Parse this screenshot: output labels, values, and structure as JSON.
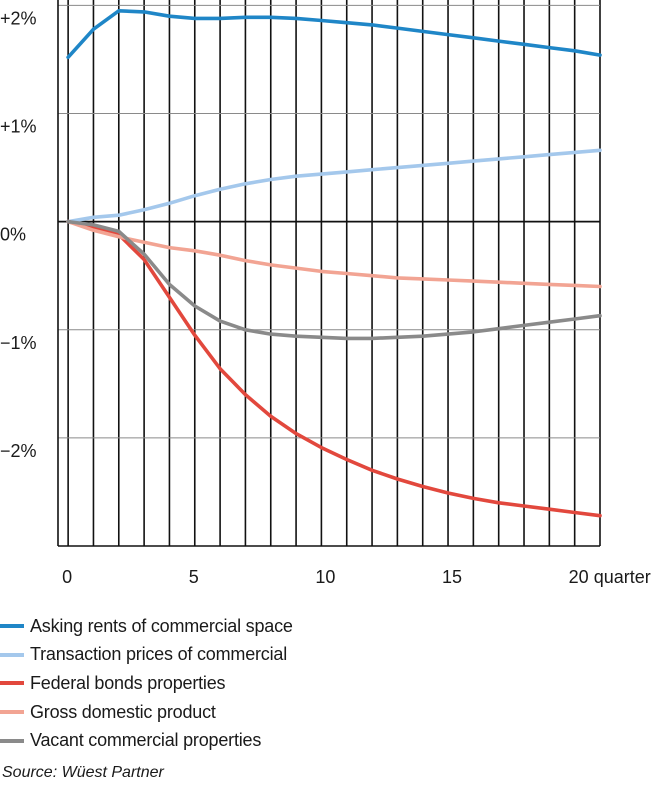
{
  "chart_data": {
    "type": "line",
    "x_unit_label": "quarters",
    "x_ticks": [
      0,
      5,
      10,
      15,
      20
    ],
    "x_tick_labels": [
      "0",
      "5",
      "10",
      "15",
      "20 quarters"
    ],
    "y_ticks": [
      2,
      1,
      0,
      -1,
      -2
    ],
    "y_tick_labels": [
      "+2%",
      "+1%",
      "0%",
      "−1%",
      "−2%"
    ],
    "xlim": [
      -0.4,
      21
    ],
    "ylim": [
      -3,
      2.05
    ],
    "grid": "horizontal at y ticks, vertical bands per quarter",
    "legend_position": "bottom",
    "x": [
      0,
      1,
      2,
      3,
      4,
      5,
      6,
      7,
      8,
      9,
      10,
      11,
      12,
      13,
      14,
      15,
      16,
      17,
      18,
      19,
      20,
      21
    ],
    "series": [
      {
        "name": "Asking rents of commercial space",
        "color": "#1f86c7",
        "values": [
          1.52,
          1.78,
          1.95,
          1.94,
          1.9,
          1.88,
          1.88,
          1.89,
          1.89,
          1.88,
          1.86,
          1.84,
          1.82,
          1.79,
          1.76,
          1.73,
          1.7,
          1.67,
          1.64,
          1.61,
          1.58,
          1.54
        ]
      },
      {
        "name": "Transaction prices of commercial",
        "color": "#a4c8ec",
        "values": [
          0.0,
          0.04,
          0.06,
          0.11,
          0.17,
          0.24,
          0.3,
          0.35,
          0.39,
          0.42,
          0.44,
          0.46,
          0.48,
          0.5,
          0.52,
          0.54,
          0.56,
          0.58,
          0.6,
          0.62,
          0.64,
          0.66
        ]
      },
      {
        "name": "Federal bonds properties",
        "color": "#e2483d",
        "values": [
          0.0,
          -0.06,
          -0.12,
          -0.35,
          -0.7,
          -1.05,
          -1.36,
          -1.6,
          -1.8,
          -1.96,
          -2.09,
          -2.2,
          -2.3,
          -2.38,
          -2.45,
          -2.51,
          -2.56,
          -2.6,
          -2.63,
          -2.66,
          -2.69,
          -2.72
        ]
      },
      {
        "name": "Gross domestic product",
        "color": "#f2a493",
        "values": [
          0.0,
          -0.08,
          -0.14,
          -0.19,
          -0.24,
          -0.27,
          -0.31,
          -0.36,
          -0.4,
          -0.43,
          -0.46,
          -0.48,
          -0.5,
          -0.52,
          -0.53,
          -0.54,
          -0.55,
          -0.56,
          -0.57,
          -0.58,
          -0.59,
          -0.6
        ]
      },
      {
        "name": "Vacant commercial properties",
        "color": "#8a8a8a",
        "values": [
          0.0,
          -0.03,
          -0.09,
          -0.3,
          -0.58,
          -0.78,
          -0.92,
          -1.0,
          -1.04,
          -1.06,
          -1.07,
          -1.08,
          -1.08,
          -1.07,
          -1.06,
          -1.04,
          -1.02,
          -0.99,
          -0.96,
          -0.93,
          -0.9,
          -0.87
        ]
      }
    ]
  },
  "source": "Source: Wüest Partner"
}
